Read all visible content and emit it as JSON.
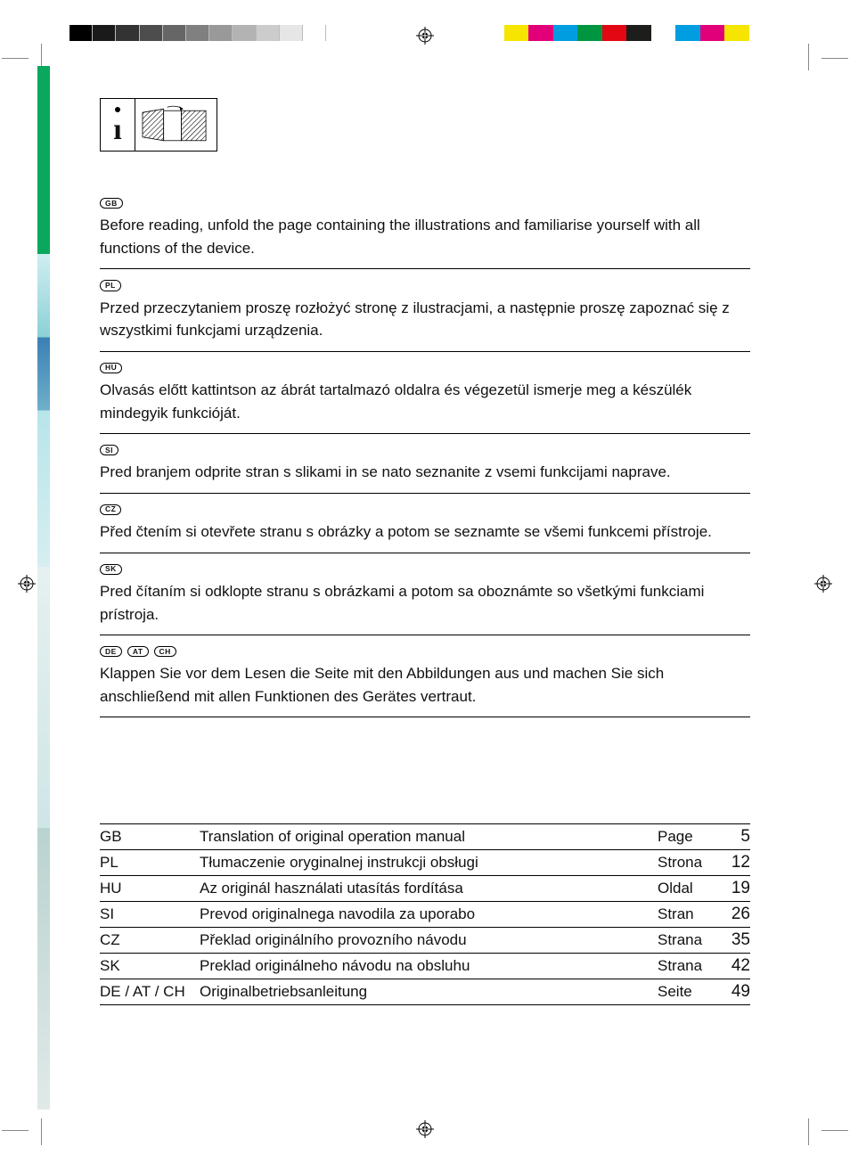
{
  "print_marks": {
    "grayscale_swatches": [
      "#000000",
      "#1a1a1a",
      "#333333",
      "#4d4d4d",
      "#666666",
      "#808080",
      "#999999",
      "#b3b3b3",
      "#cccccc",
      "#e6e6e6",
      "#ffffff"
    ],
    "color_swatches": [
      "#f6e500",
      "#e2007a",
      "#009ee0",
      "#00963f",
      "#e30613",
      "#1d1d1b",
      "#ffffff",
      "#009ee0",
      "#e2007a",
      "#f6e500",
      "#ffffff"
    ]
  },
  "sections": [
    {
      "codes": [
        "GB"
      ],
      "text": "Before reading, unfold the page containing the illustrations and familiarise yourself with all functions of the device."
    },
    {
      "codes": [
        "PL"
      ],
      "text": "Przed przeczytaniem proszę rozłożyć stronę z ilustracjami, a następnie proszę zapoznać się z wszystkimi funkcjami urządzenia."
    },
    {
      "codes": [
        "HU"
      ],
      "text": "Olvasás előtt kattintson az ábrát tartalmazó oldalra és végezetül ismerje meg a készülék mindegyik funkcióját."
    },
    {
      "codes": [
        "SI"
      ],
      "text": "Pred branjem odprite stran s slikami in se nato seznanite z vsemi funkcijami naprave."
    },
    {
      "codes": [
        "CZ"
      ],
      "text": "Před čtením si otevřete stranu s obrázky a potom se seznamte se všemi funkcemi přístroje."
    },
    {
      "codes": [
        "SK"
      ],
      "text": "Pred čítaním si odklopte stranu s obrázkami a potom sa oboznámte so všetkými funkciami prístroja."
    },
    {
      "codes": [
        "DE",
        "AT",
        "CH"
      ],
      "text": "Klappen Sie vor dem Lesen die Seite mit den Abbildungen aus und machen Sie sich anschließend mit allen Funktionen des Gerätes vertraut."
    }
  ],
  "toc": [
    {
      "code": "GB",
      "title": "Translation of original operation manual",
      "page_label": "Page",
      "page": "5"
    },
    {
      "code": "PL",
      "title": "Tłumaczenie oryginalnej instrukcji obsługi",
      "page_label": "Strona",
      "page": "12"
    },
    {
      "code": "HU",
      "title": "Az originál használati utasítás fordítása",
      "page_label": "Oldal",
      "page": "19"
    },
    {
      "code": "SI",
      "title": "Prevod originalnega navodila za uporabo",
      "page_label": "Stran",
      "page": "26"
    },
    {
      "code": "CZ",
      "title": "Překlad originálního provozního návodu",
      "page_label": "Strana",
      "page": "35"
    },
    {
      "code": "SK",
      "title": "Preklad originálneho návodu na obsluhu",
      "page_label": "Strana",
      "page": "42"
    },
    {
      "code": "DE / AT / CH",
      "title": "Originalbetriebsanleitung",
      "page_label": "Seite",
      "page": "49"
    }
  ]
}
